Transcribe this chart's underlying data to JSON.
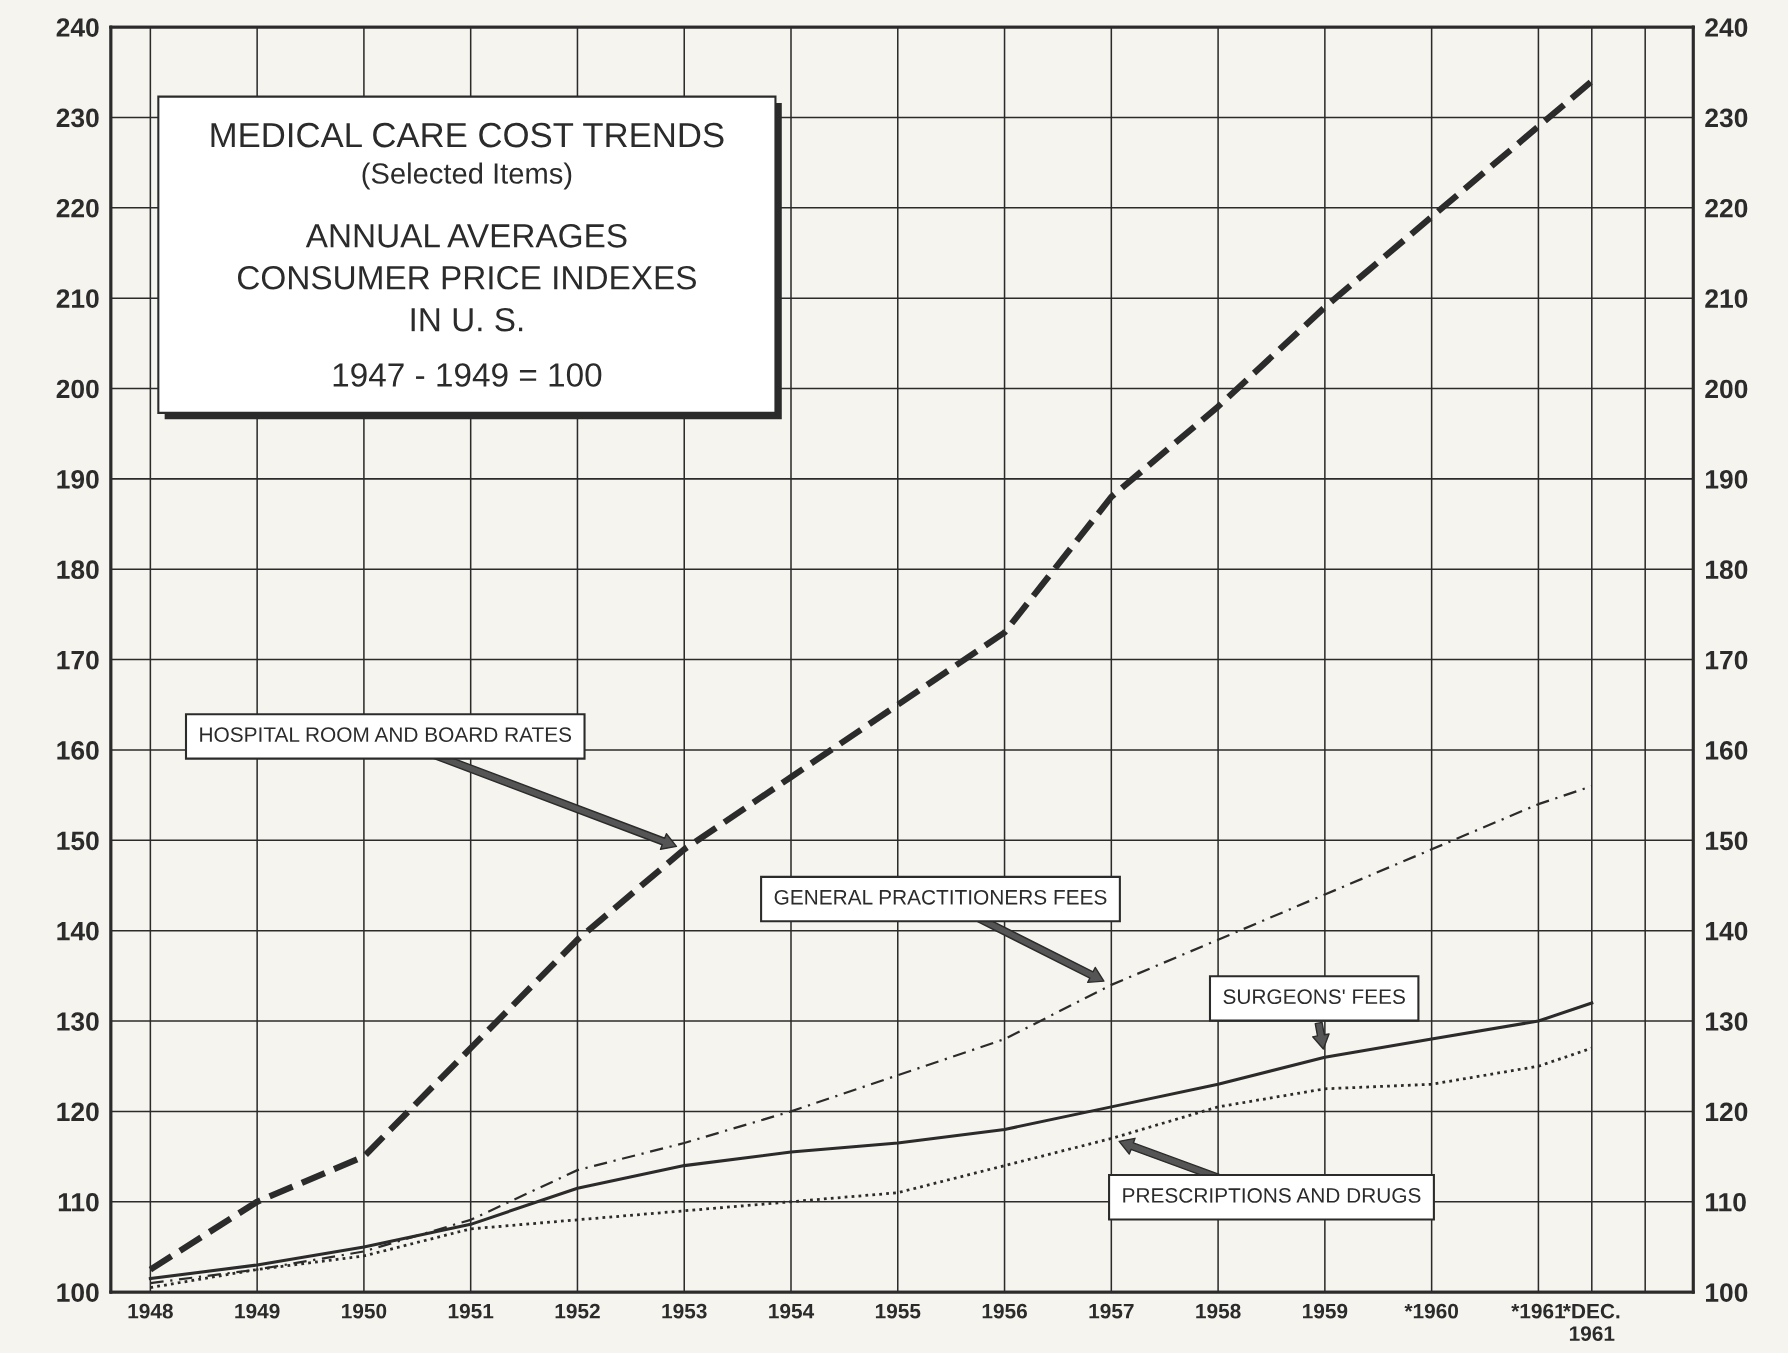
{
  "chart_data": {
    "type": "line",
    "title": "MEDICAL CARE COST TRENDS",
    "subtitle": "(Selected Items)",
    "annotations": [
      "ANNUAL AVERAGES\nCONSUMER PRICE INDEXES\nIN U. S.",
      "1947 - 1949 = 100"
    ],
    "x": [
      1948,
      1949,
      1950,
      1951,
      1952,
      1953,
      1954,
      1955,
      1956,
      1957,
      1958,
      1959,
      1960,
      1961,
      1961.5
    ],
    "series": [
      {
        "name": "HOSPITAL ROOM AND BOARD RATES",
        "color": "#2b2b2b",
        "line_style": "dashed",
        "values": [
          102.5,
          110,
          115,
          127,
          139,
          149,
          157,
          165,
          173,
          188,
          198,
          209,
          219,
          229,
          234
        ]
      },
      {
        "name": "GENERAL PRACTITIONERS FEES",
        "color": "#2b2b2b",
        "line_style": "dashdot",
        "values": [
          101,
          102.5,
          104.5,
          108,
          113.5,
          116.5,
          120,
          124,
          128,
          134,
          139,
          144,
          149,
          154,
          156
        ]
      },
      {
        "name": "SURGEONS' FEES",
        "color": "#2b2b2b",
        "line_style": "solid",
        "values": [
          101.5,
          103,
          105,
          107.5,
          111.5,
          114,
          115.5,
          116.5,
          118,
          120.5,
          123,
          126,
          128,
          130,
          132
        ]
      },
      {
        "name": "PRESCRIPTIONS AND DRUGS",
        "color": "#2b2b2b",
        "line_style": "dotted",
        "values": [
          100.5,
          102.5,
          104,
          107,
          108,
          109,
          110,
          111,
          114,
          117,
          120.5,
          122.5,
          123,
          125,
          127
        ]
      }
    ],
    "xlim": [
      1947.63,
      1962.45
    ],
    "xticks": [
      {
        "value": 1948,
        "label": "1948"
      },
      {
        "value": 1949,
        "label": "1949"
      },
      {
        "value": 1950,
        "label": "1950"
      },
      {
        "value": 1951,
        "label": "1951"
      },
      {
        "value": 1952,
        "label": "1952"
      },
      {
        "value": 1953,
        "label": "1953"
      },
      {
        "value": 1954,
        "label": "1954"
      },
      {
        "value": 1955,
        "label": "1955"
      },
      {
        "value": 1956,
        "label": "1956"
      },
      {
        "value": 1957,
        "label": "1957"
      },
      {
        "value": 1958,
        "label": "1958"
      },
      {
        "value": 1959,
        "label": "1959"
      },
      {
        "value": 1960,
        "label": "*1960"
      },
      {
        "value": 1961,
        "label": "*1961"
      },
      {
        "value": 1961.5,
        "label": "*DEC.\n1961"
      },
      {
        "value": 1962,
        "label": null
      }
    ],
    "ylim": [
      100,
      240
    ],
    "yticks": [
      100,
      110,
      120,
      130,
      140,
      150,
      160,
      170,
      180,
      190,
      200,
      210,
      220,
      230,
      240
    ],
    "y2lim": [
      100,
      240
    ],
    "y2ticks": [
      100,
      110,
      120,
      130,
      140,
      150,
      160,
      170,
      180,
      190,
      200,
      210,
      220,
      230,
      240
    ],
    "grid": true,
    "marker": "none"
  }
}
